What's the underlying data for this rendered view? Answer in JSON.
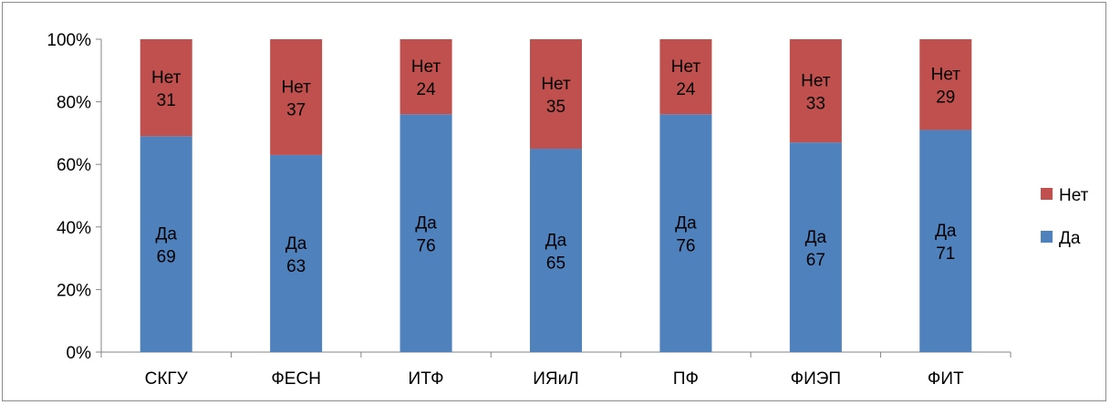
{
  "chart_data": {
    "type": "bar",
    "stacked": true,
    "normalized": true,
    "categories": [
      "СКГУ",
      "ФЕСН",
      "ИТФ",
      "ИЯиЛ",
      "ПФ",
      "ФИЭП",
      "ФИТ"
    ],
    "series": [
      {
        "name": "Да",
        "values": [
          69,
          63,
          76,
          65,
          76,
          67,
          71
        ],
        "color": "#4F81BD"
      },
      {
        "name": "Нет",
        "values": [
          31,
          37,
          24,
          35,
          24,
          33,
          29
        ],
        "color": "#C0504D"
      }
    ],
    "ylim": [
      0,
      100
    ],
    "yticks": [
      "0%",
      "20%",
      "40%",
      "60%",
      "80%",
      "100%"
    ],
    "title": "",
    "xlabel": "",
    "ylabel": "",
    "grid": false,
    "legend_position": "right",
    "legend_order": [
      "Нет",
      "Да"
    ]
  }
}
